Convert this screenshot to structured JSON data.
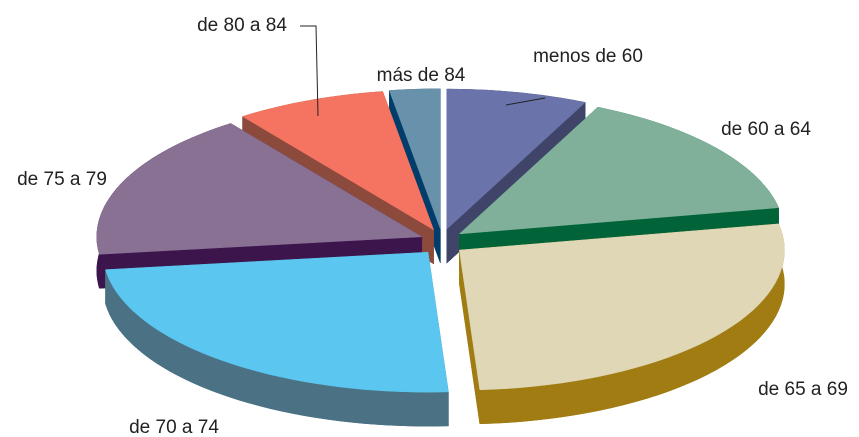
{
  "chart_data": {
    "type": "pie3d",
    "categories": [
      "menos de 60",
      "de 60 a 64",
      "de 65 a 69",
      "de 70 a 74",
      "de 75 a 79",
      "de 80 a 84",
      "más de 84"
    ],
    "values": [
      7,
      15,
      27,
      24,
      17,
      7.5,
      2.5
    ],
    "colors": [
      "#6b74aa",
      "#80b09a",
      "#e0d7b7",
      "#5bc6f0",
      "#897194",
      "#f47461",
      "#6891ab"
    ],
    "side_colors": [
      "#3f4468",
      "#006438",
      "#a07c12",
      "#4a7284",
      "#3d154d",
      "#8c4a3c",
      "#003d6b"
    ]
  }
}
